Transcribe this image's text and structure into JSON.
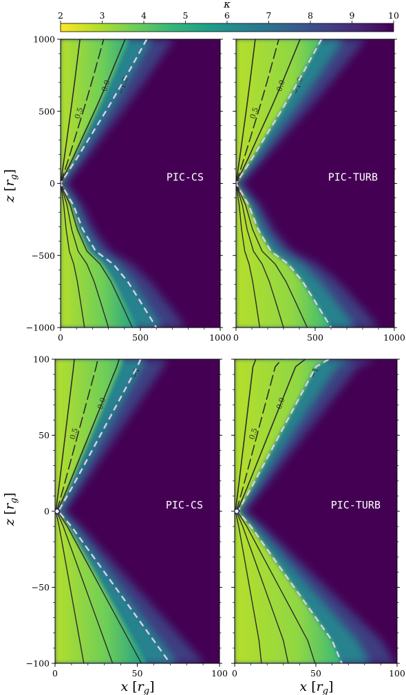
{
  "colorbar": {
    "label": "κ",
    "range": [
      2,
      10
    ],
    "ticks": [
      2,
      3,
      4,
      5,
      6,
      7,
      8,
      9,
      10
    ],
    "colormap": "viridis_r",
    "colors": [
      "#fde725",
      "#b5de2b",
      "#6ece58",
      "#35b779",
      "#1f9e89",
      "#26828e",
      "#31688e",
      "#3e4989",
      "#482878",
      "#440154"
    ]
  },
  "axes_labels": {
    "x_var": "x",
    "z_var": "z",
    "unit_sub": "g"
  },
  "chart_data": [
    {
      "type": "heatmap",
      "panel_label": "PIC-CS",
      "xlim": [
        0,
        1000
      ],
      "ylim": [
        -1000,
        1000
      ],
      "x_ticks": [
        0,
        500,
        1000
      ],
      "y_ticks": [
        -1000,
        -500,
        0,
        500,
        1000
      ],
      "x_tick_labels": [
        "0",
        "500",
        "1000"
      ],
      "y_tick_labels": [
        "−1000",
        "−500",
        "0",
        "500",
        "1000"
      ],
      "contour_labels": [
        "0.5",
        "0.0",
        "−1.0"
      ],
      "dashed_boundary": {
        "upper": [
          [
            0,
            0
          ],
          [
            100,
            170
          ],
          [
            200,
            350
          ],
          [
            300,
            530
          ],
          [
            400,
            720
          ],
          [
            540,
            1000
          ]
        ],
        "lower": [
          [
            0,
            0
          ],
          [
            80,
            -150
          ],
          [
            140,
            -320
          ],
          [
            220,
            -470
          ],
          [
            330,
            -560
          ],
          [
            420,
            -680
          ],
          [
            500,
            -820
          ],
          [
            600,
            -1000
          ]
        ]
      }
    },
    {
      "type": "heatmap",
      "panel_label": "PIC-TURB",
      "xlim": [
        0,
        1000
      ],
      "ylim": [
        -1000,
        1000
      ],
      "x_ticks": [
        0,
        500,
        1000
      ],
      "y_ticks": [
        -1000,
        -500,
        0,
        500,
        1000
      ],
      "x_tick_labels": [
        "0",
        "500",
        "1000"
      ],
      "y_tick_labels": [],
      "contour_labels": [
        "0.5",
        "0.0",
        "−1.0"
      ],
      "dashed_boundary": {
        "upper": [
          [
            0,
            0
          ],
          [
            100,
            170
          ],
          [
            200,
            350
          ],
          [
            300,
            530
          ],
          [
            400,
            720
          ],
          [
            540,
            1000
          ]
        ],
        "lower": [
          [
            0,
            0
          ],
          [
            80,
            -150
          ],
          [
            140,
            -320
          ],
          [
            220,
            -470
          ],
          [
            330,
            -560
          ],
          [
            420,
            -680
          ],
          [
            500,
            -820
          ],
          [
            600,
            -1000
          ]
        ]
      }
    },
    {
      "type": "heatmap",
      "panel_label": "PIC-CS",
      "xlim": [
        0,
        100
      ],
      "ylim": [
        -100,
        100
      ],
      "x_ticks": [
        0,
        50,
        100
      ],
      "y_ticks": [
        -100,
        -50,
        0,
        50,
        100
      ],
      "x_tick_labels": [
        "0",
        "50",
        "100"
      ],
      "y_tick_labels": [
        "−100",
        "−50",
        "0",
        "50",
        "100"
      ],
      "contour_labels": [
        "0.5",
        "0.0",
        "−1"
      ],
      "dashed_boundary": {
        "upper": [
          [
            2,
            0
          ],
          [
            10,
            15
          ],
          [
            20,
            35
          ],
          [
            30,
            55
          ],
          [
            40,
            75
          ],
          [
            50,
            95
          ],
          [
            52,
            100
          ]
        ],
        "lower": [
          [
            2,
            0
          ],
          [
            10,
            -10
          ],
          [
            20,
            -25
          ],
          [
            30,
            -40
          ],
          [
            40,
            -55
          ],
          [
            50,
            -70
          ],
          [
            60,
            -85
          ],
          [
            70,
            -100
          ]
        ]
      }
    },
    {
      "type": "heatmap",
      "panel_label": "PIC-TURB",
      "xlim": [
        0,
        100
      ],
      "ylim": [
        -100,
        100
      ],
      "x_ticks": [
        0,
        50,
        100
      ],
      "y_ticks": [
        -100,
        -50,
        0,
        50,
        100
      ],
      "x_tick_labels": [
        "0",
        "50",
        "100"
      ],
      "y_tick_labels": [],
      "contour_labels": [
        "0.5",
        "0.0",
        "−1"
      ],
      "dashed_boundary": {
        "upper": [
          [
            2,
            0
          ],
          [
            10,
            15
          ],
          [
            20,
            35
          ],
          [
            30,
            55
          ],
          [
            40,
            75
          ],
          [
            50,
            95
          ],
          [
            58,
            100
          ]
        ],
        "lower": [
          [
            2,
            0
          ],
          [
            10,
            -10
          ],
          [
            20,
            -25
          ],
          [
            30,
            -40
          ],
          [
            40,
            -55
          ],
          [
            50,
            -70
          ],
          [
            60,
            -85
          ],
          [
            66,
            -100
          ]
        ]
      }
    }
  ]
}
